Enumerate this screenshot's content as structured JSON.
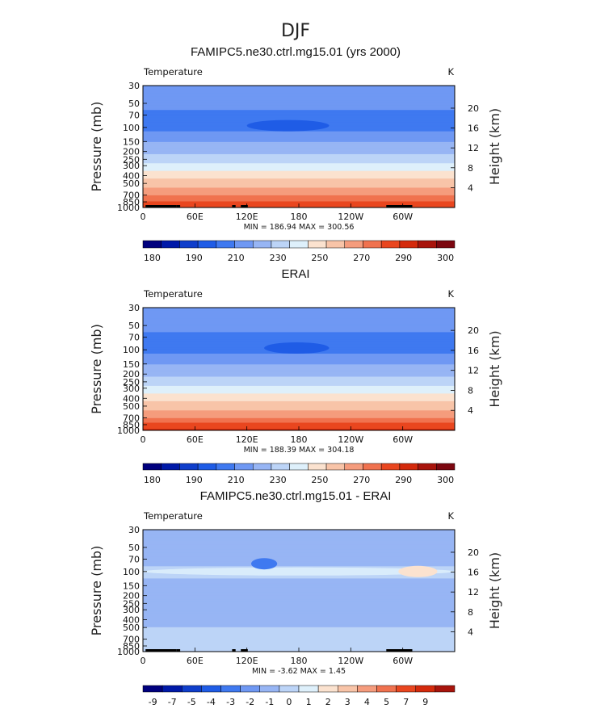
{
  "figure_title": "DJF",
  "chart_data": [
    {
      "type": "heatmap",
      "title": "FAMIPC5.ne30.ctrl.mg15.01 (yrs 2000)",
      "variable": "Temperature",
      "units": "K",
      "ylabel": "Pressure (mb)",
      "ylabel_right": "Height (km)",
      "x_ticks": [
        "0",
        "60E",
        "120E",
        "180",
        "120W",
        "60W"
      ],
      "x_tick_values": [
        0,
        60,
        120,
        180,
        240,
        300
      ],
      "xlim": [
        0,
        360
      ],
      "y_ticks": [
        "30",
        "50",
        "70",
        "100",
        "150",
        "200",
        "250",
        "300",
        "400",
        "500",
        "700",
        "850",
        "1000"
      ],
      "y_tick_values": [
        30,
        50,
        70,
        100,
        150,
        200,
        250,
        300,
        400,
        500,
        700,
        850,
        1000
      ],
      "ylim": [
        1000,
        30
      ],
      "height_ticks": [
        "20",
        "16",
        "12",
        "8",
        "4"
      ],
      "height_tick_values": [
        20,
        16,
        12,
        8,
        4
      ],
      "min": "186.94",
      "max": "300.56",
      "stats_text": "MIN = 186.94  MAX = 300.56",
      "colorbar_labels": [
        "180",
        "190",
        "210",
        "230",
        "250",
        "270",
        "290",
        "300"
      ],
      "colorbar_levels": [
        175,
        180,
        185,
        190,
        200,
        210,
        220,
        230,
        240,
        250,
        260,
        270,
        280,
        290,
        295,
        300
      ],
      "field_profile": [
        {
          "p": 30,
          "value": 207
        },
        {
          "p": 50,
          "value": 207
        },
        {
          "p": 60,
          "value": 200
        },
        {
          "p": 85,
          "value": 198
        },
        {
          "p": 100,
          "value": 197
        },
        {
          "p": 130,
          "value": 205
        },
        {
          "p": 160,
          "value": 212
        },
        {
          "p": 200,
          "value": 218
        },
        {
          "p": 250,
          "value": 225
        },
        {
          "p": 300,
          "value": 233
        },
        {
          "p": 400,
          "value": 246
        },
        {
          "p": 500,
          "value": 255
        },
        {
          "p": 700,
          "value": 270
        },
        {
          "p": 850,
          "value": 281
        },
        {
          "p": 1000,
          "value": 290
        }
      ],
      "features": [
        {
          "label": "tropical tropopause minimum",
          "lon_range": [
            120,
            215
          ],
          "p_center": 95,
          "value": 186.94
        }
      ],
      "terrain": [
        {
          "lon_range": [
            3,
            28
          ]
        },
        {
          "lon_range": [
            28,
            39
          ]
        },
        {
          "lon_range": [
            39,
            43
          ]
        },
        {
          "lon_range": [
            103,
            107
          ]
        },
        {
          "lon_range": [
            113,
            121
          ]
        },
        {
          "lon_range": [
            281,
            311
          ]
        }
      ]
    },
    {
      "type": "heatmap",
      "title": "ERAI",
      "variable": "Temperature",
      "units": "K",
      "ylabel": "Pressure (mb)",
      "ylabel_right": "Height (km)",
      "x_ticks": [
        "0",
        "60E",
        "120E",
        "180",
        "120W",
        "60W"
      ],
      "x_tick_values": [
        0,
        60,
        120,
        180,
        240,
        300
      ],
      "xlim": [
        0,
        360
      ],
      "y_ticks": [
        "30",
        "50",
        "70",
        "100",
        "150",
        "200",
        "250",
        "300",
        "400",
        "500",
        "700",
        "850",
        "1000"
      ],
      "y_tick_values": [
        30,
        50,
        70,
        100,
        150,
        200,
        250,
        300,
        400,
        500,
        700,
        850,
        1000
      ],
      "ylim": [
        1000,
        30
      ],
      "height_ticks": [
        "20",
        "16",
        "12",
        "8",
        "4"
      ],
      "height_tick_values": [
        20,
        16,
        12,
        8,
        4
      ],
      "min": "188.39",
      "max": "304.18",
      "stats_text": "MIN = 188.39  MAX = 304.18",
      "colorbar_labels": [
        "180",
        "190",
        "210",
        "230",
        "250",
        "270",
        "290",
        "300"
      ],
      "colorbar_levels": [
        175,
        180,
        185,
        190,
        200,
        210,
        220,
        230,
        240,
        250,
        260,
        270,
        280,
        290,
        295,
        300
      ],
      "field_profile": [
        {
          "p": 30,
          "value": 207
        },
        {
          "p": 50,
          "value": 207
        },
        {
          "p": 60,
          "value": 200
        },
        {
          "p": 85,
          "value": 198
        },
        {
          "p": 100,
          "value": 197
        },
        {
          "p": 130,
          "value": 205
        },
        {
          "p": 160,
          "value": 212
        },
        {
          "p": 200,
          "value": 218
        },
        {
          "p": 250,
          "value": 225
        },
        {
          "p": 300,
          "value": 233
        },
        {
          "p": 400,
          "value": 246
        },
        {
          "p": 500,
          "value": 255
        },
        {
          "p": 700,
          "value": 270
        },
        {
          "p": 850,
          "value": 283
        },
        {
          "p": 1000,
          "value": 294
        }
      ],
      "features": [
        {
          "label": "tropical tropopause minimum",
          "lon_range": [
            140,
            215
          ],
          "p_center": 95,
          "value": 188.39
        }
      ],
      "terrain": []
    },
    {
      "type": "heatmap",
      "title": "FAMIPC5.ne30.ctrl.mg15.01 - ERAI",
      "variable": "Temperature",
      "units": "K",
      "ylabel": "Pressure (mb)",
      "ylabel_right": "Height (km)",
      "x_ticks": [
        "0",
        "60E",
        "120E",
        "180",
        "120W",
        "60W"
      ],
      "x_tick_values": [
        0,
        60,
        120,
        180,
        240,
        300
      ],
      "xlim": [
        0,
        360
      ],
      "y_ticks": [
        "30",
        "50",
        "70",
        "100",
        "150",
        "200",
        "250",
        "300",
        "400",
        "500",
        "700",
        "850",
        "1000"
      ],
      "y_tick_values": [
        30,
        50,
        70,
        100,
        150,
        200,
        250,
        300,
        400,
        500,
        700,
        850,
        1000
      ],
      "ylim": [
        1000,
        30
      ],
      "height_ticks": [
        "20",
        "16",
        "12",
        "8",
        "4"
      ],
      "height_tick_values": [
        20,
        16,
        12,
        8,
        4
      ],
      "min": "-3.62",
      "max": "1.45",
      "stats_text": "MIN = -3.62  MAX =   1.45",
      "colorbar_labels": [
        "-9",
        "-7",
        "-5",
        "-4",
        "-3",
        "-2",
        "-1",
        "0",
        "1",
        "2",
        "3",
        "4",
        "5",
        "7",
        "9"
      ],
      "colorbar_levels": [
        -9,
        -7,
        -5,
        -4,
        -3,
        -2,
        -1,
        0,
        1,
        2,
        3,
        4,
        5,
        7,
        9
      ],
      "field_profile": [
        {
          "p": 30,
          "value": -1.6
        },
        {
          "p": 50,
          "value": -1.8
        },
        {
          "p": 70,
          "value": -1.5
        },
        {
          "p": 100,
          "value": -0.6
        },
        {
          "p": 150,
          "value": -1.5
        },
        {
          "p": 200,
          "value": -1.7
        },
        {
          "p": 300,
          "value": -1.6
        },
        {
          "p": 400,
          "value": -1.2
        },
        {
          "p": 500,
          "value": -1.0
        },
        {
          "p": 700,
          "value": -0.8
        },
        {
          "p": 850,
          "value": -0.6
        },
        {
          "p": 1000,
          "value": -0.4
        }
      ],
      "features": [
        {
          "label": "near-zero band at 100 mb",
          "lon_range": [
            0,
            360
          ],
          "p_center": 100,
          "value": 0.5
        },
        {
          "label": "cold anomaly",
          "lon_range": [
            125,
            155
          ],
          "p_center": 80,
          "value": -3.62
        },
        {
          "label": "warm spots",
          "lon_range": [
            295,
            340
          ],
          "p_center": 100,
          "value": 1.45
        }
      ],
      "terrain": [
        {
          "lon_range": [
            3,
            28
          ]
        },
        {
          "lon_range": [
            28,
            39
          ]
        },
        {
          "lon_range": [
            39,
            43
          ]
        },
        {
          "lon_range": [
            103,
            107
          ]
        },
        {
          "lon_range": [
            113,
            121
          ]
        },
        {
          "lon_range": [
            281,
            311
          ]
        }
      ]
    }
  ],
  "colors": {
    "abs_palette": [
      "#00007e",
      "#0019a8",
      "#0f3ecb",
      "#1f5ce6",
      "#3f79f0",
      "#6f98f3",
      "#97b5f4",
      "#bcd4f7",
      "#def0fb",
      "#fbe2cf",
      "#f8c4a8",
      "#f59c7d",
      "#f0724f",
      "#e9461f",
      "#d42a0c",
      "#a8140c",
      "#7c0710"
    ],
    "diff_palette": [
      "#00007e",
      "#0019a8",
      "#0f3ecb",
      "#1f5ce6",
      "#3f79f0",
      "#6f98f3",
      "#97b5f4",
      "#bcd4f7",
      "#def0fb",
      "#fbe2cf",
      "#f8c4a8",
      "#f59c7d",
      "#f0724f",
      "#e9461f",
      "#d42a0c",
      "#a8140c"
    ],
    "terrain": "#000000"
  }
}
